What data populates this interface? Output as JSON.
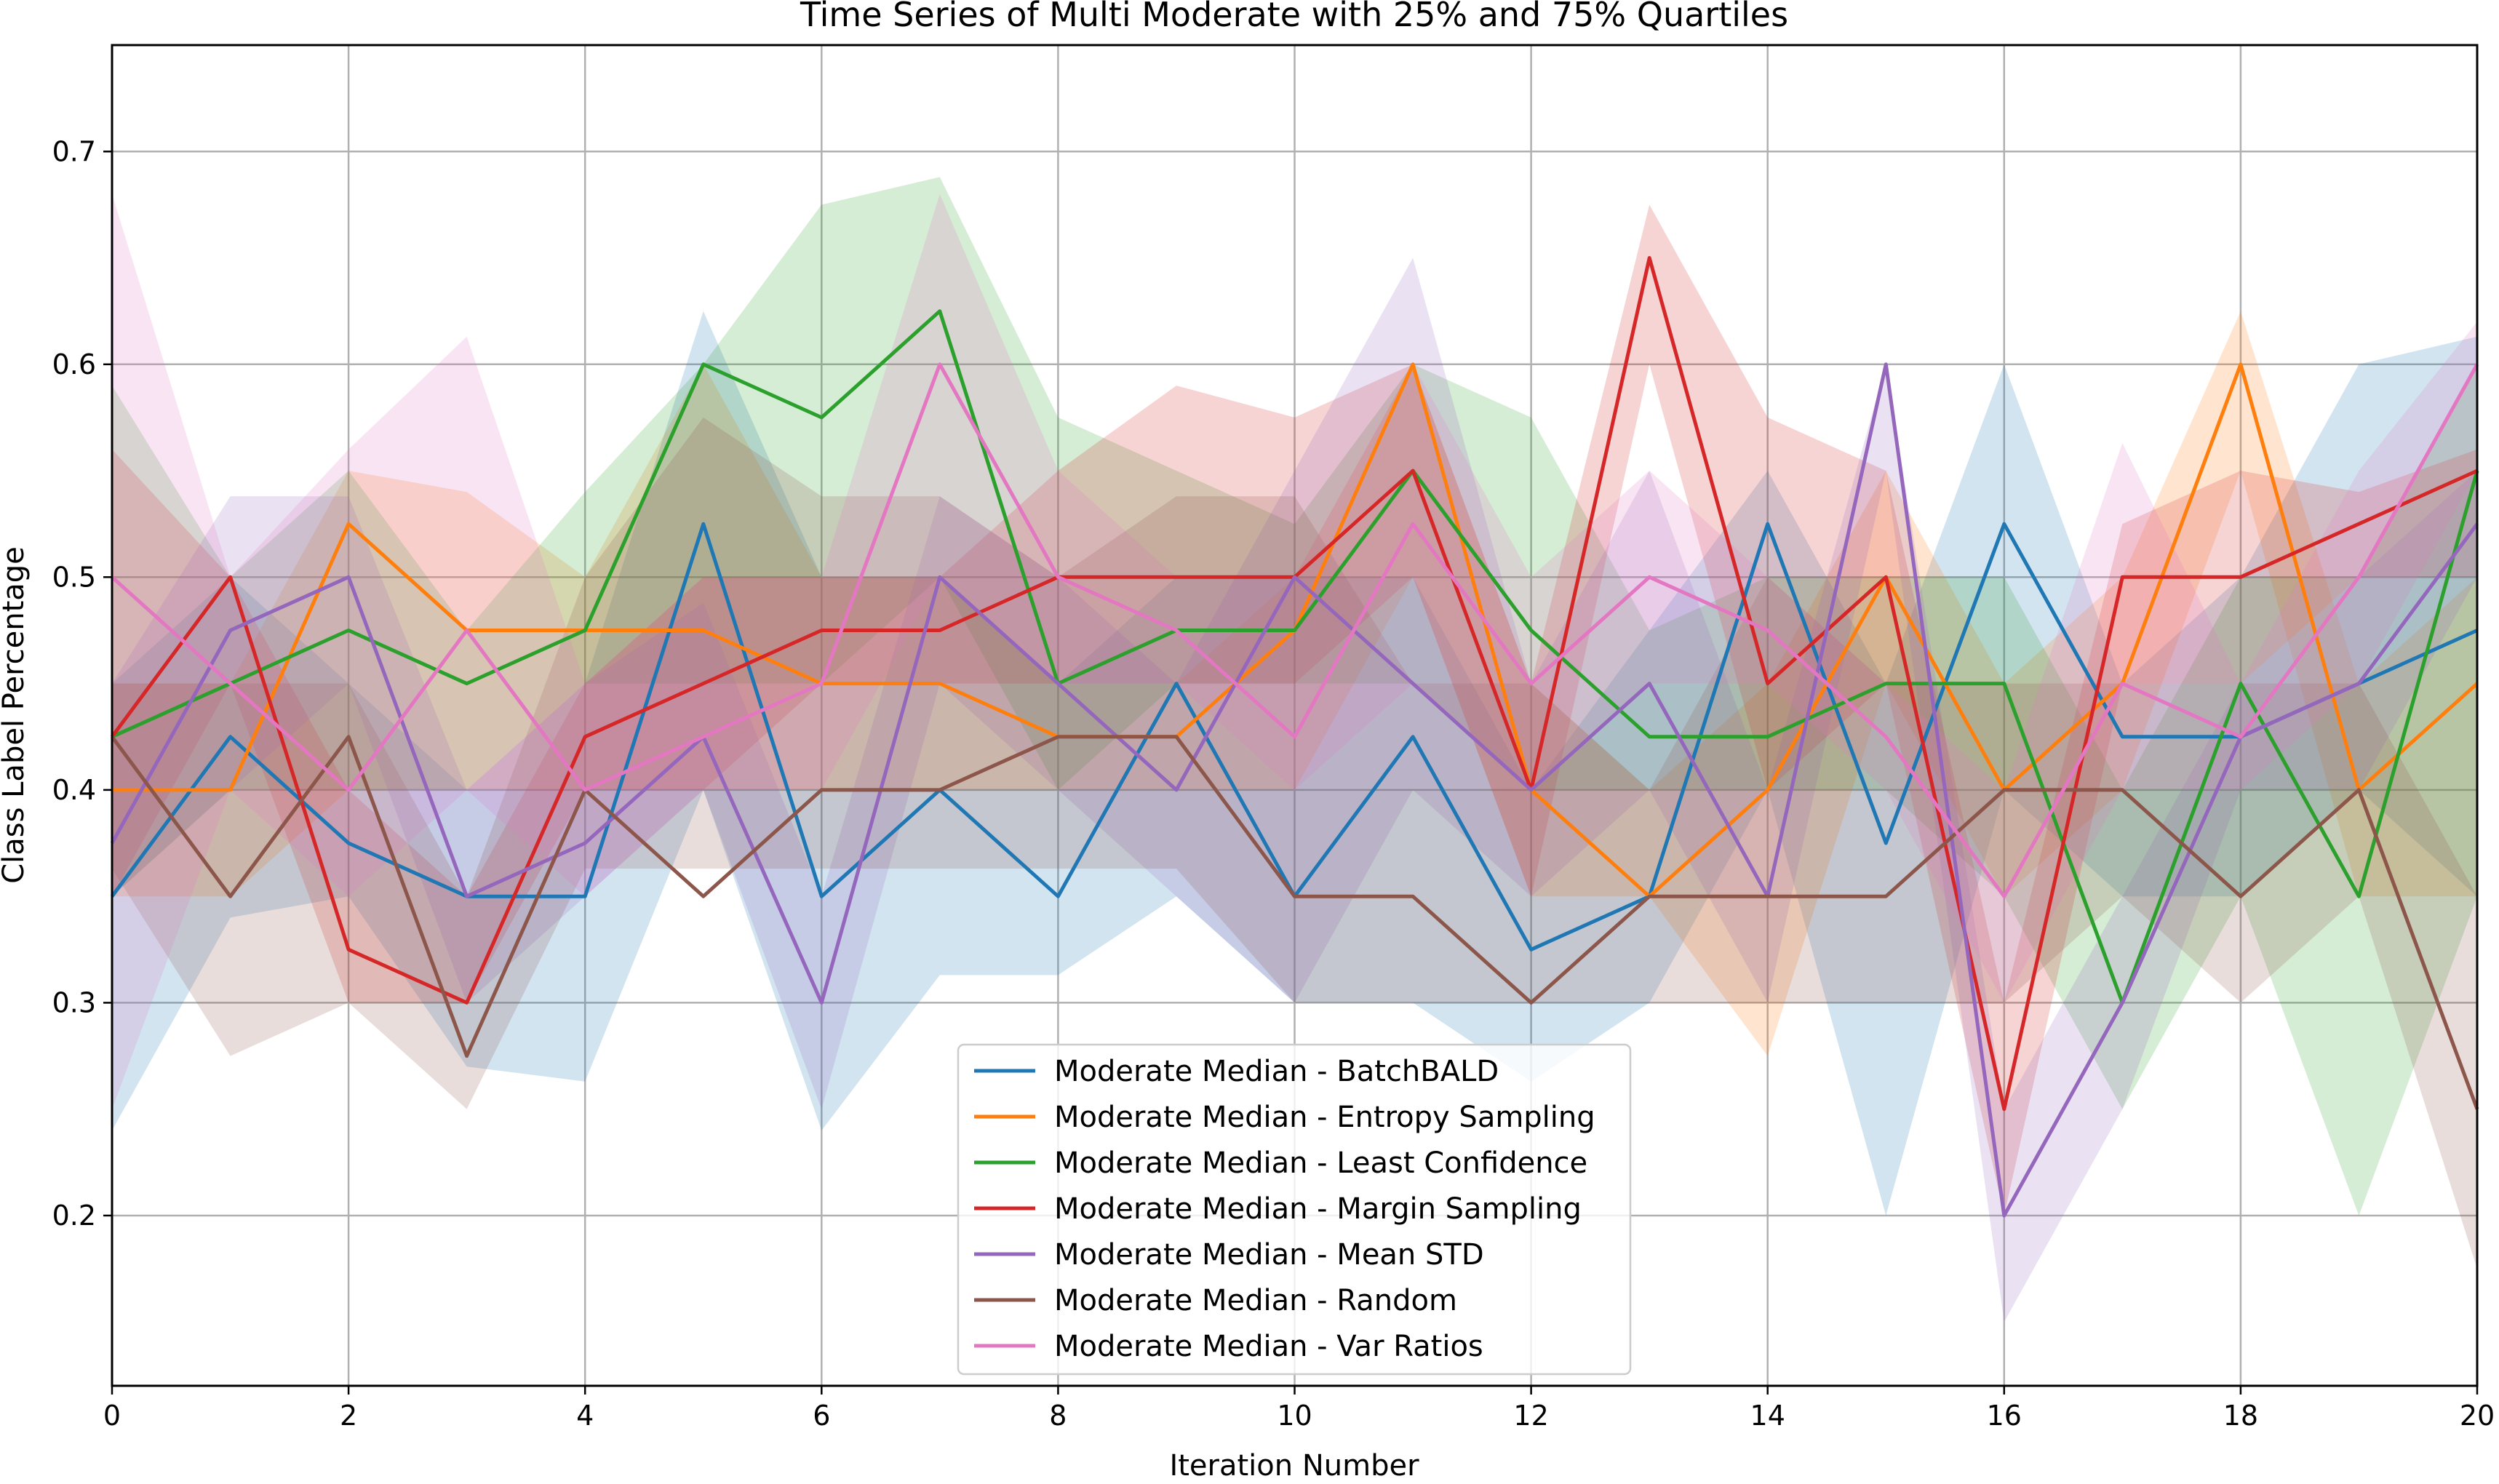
{
  "chart_data": {
    "type": "line",
    "title": "Time Series of Multi Moderate with 25% and 75% Quartiles",
    "xlabel": "Iteration Number",
    "ylabel": "Class Label Percentage",
    "xlim": [
      0,
      20
    ],
    "ylim": [
      0.12,
      0.75
    ],
    "xticks": [
      0,
      2,
      4,
      6,
      8,
      10,
      12,
      14,
      16,
      18,
      20
    ],
    "yticks": [
      0.2,
      0.3,
      0.4,
      0.5,
      0.6,
      0.7
    ],
    "grid": true,
    "legend_position": "lower center",
    "x": [
      0,
      1,
      2,
      3,
      4,
      5,
      6,
      7,
      8,
      9,
      10,
      11,
      12,
      13,
      14,
      15,
      16,
      17,
      18,
      19,
      20
    ],
    "series": [
      {
        "name": "Moderate Median - BatchBALD",
        "color": "#1f77b4",
        "values": [
          0.35,
          0.425,
          0.375,
          0.35,
          0.35,
          0.525,
          0.35,
          0.4,
          0.35,
          0.45,
          0.35,
          0.425,
          0.325,
          0.35,
          0.525,
          0.375,
          0.525,
          0.425,
          0.425,
          0.45,
          0.475
        ],
        "q25": [
          0.24,
          0.34,
          0.35,
          0.27,
          0.263,
          0.4,
          0.24,
          0.313,
          0.313,
          0.35,
          0.3,
          0.3,
          0.263,
          0.3,
          0.4,
          0.2,
          0.4,
          0.35,
          0.35,
          0.4,
          0.35
        ],
        "q75": [
          0.45,
          0.5,
          0.45,
          0.4,
          0.45,
          0.625,
          0.5,
          0.5,
          0.45,
          0.5,
          0.5,
          0.5,
          0.4,
          0.475,
          0.55,
          0.45,
          0.6,
          0.45,
          0.5,
          0.6,
          0.613
        ]
      },
      {
        "name": "Moderate Median - Entropy Sampling",
        "color": "#ff7f0e",
        "values": [
          0.4,
          0.4,
          0.525,
          0.475,
          0.475,
          0.475,
          0.45,
          0.45,
          0.425,
          0.425,
          0.475,
          0.6,
          0.4,
          0.35,
          0.4,
          0.5,
          0.4,
          0.45,
          0.6,
          0.4,
          0.45
        ],
        "q25": [
          0.35,
          0.35,
          0.4,
          0.4,
          0.4,
          0.4,
          0.4,
          0.4,
          0.4,
          0.4,
          0.4,
          0.5,
          0.35,
          0.35,
          0.275,
          0.45,
          0.35,
          0.4,
          0.55,
          0.35,
          0.35
        ],
        "q75": [
          0.45,
          0.45,
          0.55,
          0.54,
          0.5,
          0.6,
          0.5,
          0.5,
          0.45,
          0.45,
          0.5,
          0.6,
          0.45,
          0.4,
          0.45,
          0.55,
          0.45,
          0.5,
          0.625,
          0.45,
          0.5
        ]
      },
      {
        "name": "Moderate Median - Least Confidence",
        "color": "#2ca02c",
        "values": [
          0.425,
          0.45,
          0.475,
          0.45,
          0.475,
          0.6,
          0.575,
          0.625,
          0.45,
          0.475,
          0.475,
          0.55,
          0.475,
          0.425,
          0.425,
          0.45,
          0.45,
          0.3,
          0.45,
          0.35,
          0.55
        ],
        "q25": [
          0.35,
          0.4,
          0.4,
          0.4,
          0.45,
          0.45,
          0.45,
          0.5,
          0.4,
          0.45,
          0.45,
          0.45,
          0.4,
          0.4,
          0.4,
          0.4,
          0.35,
          0.25,
          0.35,
          0.2,
          0.35
        ],
        "q75": [
          0.59,
          0.5,
          0.55,
          0.475,
          0.54,
          0.6,
          0.675,
          0.688,
          0.575,
          0.55,
          0.525,
          0.6,
          0.575,
          0.475,
          0.5,
          0.5,
          0.5,
          0.4,
          0.5,
          0.5,
          0.6
        ]
      },
      {
        "name": "Moderate Median - Margin Sampling",
        "color": "#d62728",
        "values": [
          0.425,
          0.5,
          0.325,
          0.3,
          0.425,
          0.45,
          0.475,
          0.475,
          0.5,
          0.5,
          0.5,
          0.55,
          0.4,
          0.65,
          0.45,
          0.5,
          0.25,
          0.5,
          0.5,
          0.525,
          0.55
        ],
        "q25": [
          0.35,
          0.45,
          0.3,
          0.3,
          0.4,
          0.4,
          0.45,
          0.45,
          0.45,
          0.45,
          0.45,
          0.5,
          0.35,
          0.6,
          0.4,
          0.45,
          0.2,
          0.45,
          0.45,
          0.5,
          0.5
        ],
        "q75": [
          0.56,
          0.5,
          0.4,
          0.35,
          0.45,
          0.5,
          0.5,
          0.5,
          0.55,
          0.59,
          0.575,
          0.6,
          0.45,
          0.675,
          0.575,
          0.55,
          0.3,
          0.525,
          0.55,
          0.54,
          0.56
        ]
      },
      {
        "name": "Moderate Median - Mean STD",
        "color": "#9467bd",
        "values": [
          0.375,
          0.475,
          0.5,
          0.35,
          0.375,
          0.425,
          0.3,
          0.5,
          0.45,
          0.4,
          0.5,
          0.45,
          0.4,
          0.45,
          0.35,
          0.6,
          0.2,
          0.3,
          0.425,
          0.45,
          0.525
        ],
        "q25": [
          0.35,
          0.4,
          0.45,
          0.3,
          0.35,
          0.4,
          0.25,
          0.45,
          0.4,
          0.35,
          0.3,
          0.4,
          0.35,
          0.4,
          0.3,
          0.55,
          0.15,
          0.25,
          0.4,
          0.4,
          0.5
        ],
        "q75": [
          0.45,
          0.538,
          0.538,
          0.4,
          0.45,
          0.488,
          0.35,
          0.538,
          0.5,
          0.45,
          0.55,
          0.65,
          0.45,
          0.55,
          0.4,
          0.6,
          0.25,
          0.35,
          0.45,
          0.5,
          0.55
        ]
      },
      {
        "name": "Moderate Median - Random",
        "color": "#8c564b",
        "values": [
          0.425,
          0.35,
          0.425,
          0.275,
          0.4,
          0.35,
          0.4,
          0.4,
          0.425,
          0.425,
          0.35,
          0.35,
          0.3,
          0.35,
          0.35,
          0.35,
          0.4,
          0.4,
          0.35,
          0.4,
          0.25
        ],
        "q25": [
          0.363,
          0.275,
          0.3,
          0.25,
          0.363,
          0.363,
          0.363,
          0.363,
          0.363,
          0.363,
          0.3,
          0.3,
          0.3,
          0.3,
          0.3,
          0.3,
          0.3,
          0.35,
          0.3,
          0.35,
          0.175
        ],
        "q75": [
          0.45,
          0.45,
          0.45,
          0.35,
          0.5,
          0.575,
          0.538,
          0.538,
          0.5,
          0.538,
          0.538,
          0.45,
          0.45,
          0.4,
          0.5,
          0.45,
          0.45,
          0.45,
          0.45,
          0.45,
          0.35
        ]
      },
      {
        "name": "Moderate Median - Var Ratios",
        "color": "#e377c2",
        "values": [
          0.5,
          0.45,
          0.4,
          0.475,
          0.4,
          0.425,
          0.45,
          0.6,
          0.5,
          0.475,
          0.425,
          0.525,
          0.45,
          0.5,
          0.475,
          0.425,
          0.35,
          0.45,
          0.425,
          0.5,
          0.6
        ],
        "q25": [
          0.25,
          0.4,
          0.35,
          0.4,
          0.35,
          0.4,
          0.4,
          0.5,
          0.45,
          0.45,
          0.4,
          0.45,
          0.4,
          0.45,
          0.45,
          0.4,
          0.3,
          0.4,
          0.4,
          0.45,
          0.55
        ],
        "q75": [
          0.68,
          0.5,
          0.56,
          0.613,
          0.45,
          0.5,
          0.5,
          0.68,
          0.55,
          0.5,
          0.5,
          0.6,
          0.5,
          0.55,
          0.5,
          0.45,
          0.4,
          0.563,
          0.45,
          0.55,
          0.62
        ]
      }
    ]
  }
}
